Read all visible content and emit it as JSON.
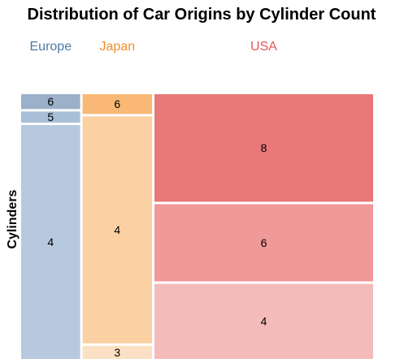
{
  "chart_data": {
    "type": "mosaic",
    "title": "Distribution of Car Origins by Cylinder Count",
    "ylabel": "Cylinders",
    "xlabel": "",
    "columns": [
      {
        "name": "Europe",
        "color": "#4e79a7",
        "share": 0.17,
        "segments": [
          {
            "label": "6",
            "value": 4,
            "color": "#9bb0c9"
          },
          {
            "label": "5",
            "value": 3,
            "color": "#a9bfd8"
          },
          {
            "label": "4",
            "value": 63,
            "color": "#b7c9de"
          }
        ]
      },
      {
        "name": "Japan",
        "color": "#f28e2b",
        "share": 0.2,
        "segments": [
          {
            "label": "6",
            "value": 6,
            "color": "#f9b875"
          },
          {
            "label": "4",
            "value": 69,
            "color": "#fbd1a4"
          },
          {
            "label": "3",
            "value": 4,
            "color": "#fce0c3"
          }
        ]
      },
      {
        "name": "USA",
        "color": "#e15759",
        "share": 0.63,
        "segments": [
          {
            "label": "8",
            "value": 103,
            "color": "#e97878"
          },
          {
            "label": "6",
            "value": 74,
            "color": "#ef9999"
          },
          {
            "label": "4",
            "value": 72,
            "color": "#f4bbbb"
          }
        ]
      }
    ],
    "legend_position": "top",
    "grid": false
  }
}
